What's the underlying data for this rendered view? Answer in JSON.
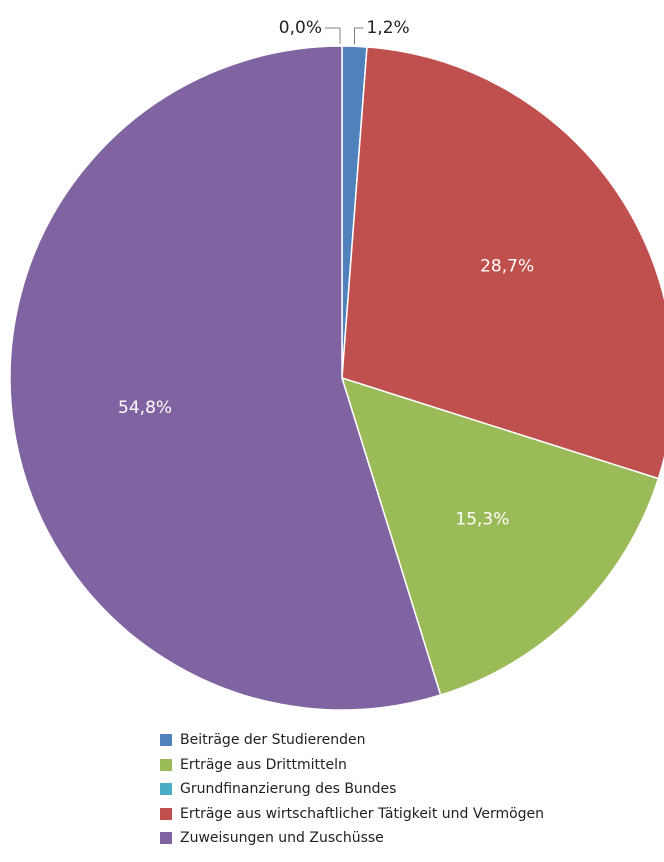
{
  "chart_data": {
    "type": "pie",
    "title": "",
    "slices": [
      {
        "label": "Beiträge der Studierenden",
        "value": 1.2,
        "display": "1,2%",
        "color": "#4F81BD"
      },
      {
        "label": "Erträge aus wirtschaftlicher Tätigkeit und Vermögen",
        "value": 28.7,
        "display": "28,7%",
        "color": "#C0504D"
      },
      {
        "label": "Erträge aus Drittmitteln",
        "value": 15.3,
        "display": "15,3%",
        "color": "#9BBB59"
      },
      {
        "label": "Zuweisungen und Zuschüsse",
        "value": 54.8,
        "display": "54,8%",
        "color": "#8064A2"
      },
      {
        "label": "Grundfinanzierung des Bundes",
        "value": 0.0,
        "display": "0,0%",
        "color": "#4BACC6"
      }
    ],
    "legend": {
      "placement": "bottom",
      "entries": [
        {
          "label": "Beiträge der Studierenden",
          "color": "#4F81BD"
        },
        {
          "label": "Erträge aus Drittmitteln",
          "color": "#9BBB59"
        },
        {
          "label": "Grundfinanzierung des Bundes",
          "color": "#4BACC6"
        },
        {
          "label": "Erträge aus wirtschaftlicher Tätigkeit und Vermögen",
          "color": "#C0504D"
        },
        {
          "label": "Zuweisungen und Zuschüsse",
          "color": "#8064A2"
        }
      ]
    }
  }
}
